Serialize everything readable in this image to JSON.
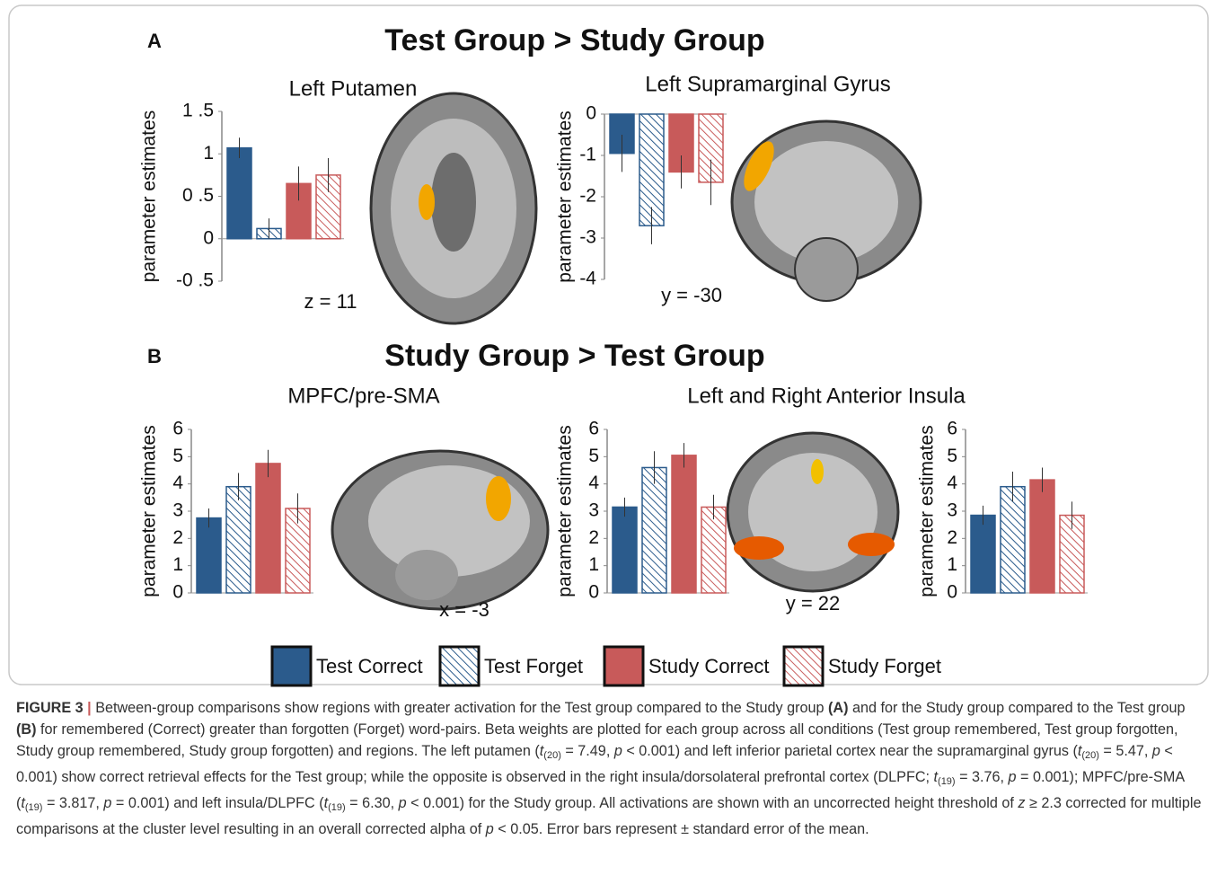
{
  "panel_a": {
    "label": "A",
    "heading": "Test Group > Study Group"
  },
  "panel_b": {
    "label": "B",
    "heading": "Study Group > Test Group"
  },
  "slice_labels": [
    "z = 11",
    "y = -30",
    "x = -3",
    "y = 22"
  ],
  "legend": [
    {
      "name": "Test Correct",
      "color": "#2b5b8c",
      "hatch": false
    },
    {
      "name": "Test Forget",
      "color": "#2b5b8c",
      "hatch": true
    },
    {
      "name": "Study Correct",
      "color": "#c85a5a",
      "hatch": false
    },
    {
      "name": "Study Forget",
      "color": "#c85a5a",
      "hatch": true
    }
  ],
  "chart_data": [
    {
      "type": "bar",
      "title": "Left Putamen",
      "ylabel": "parameter estimates",
      "ylim": [
        -0.5,
        1.5
      ],
      "yticks": [
        {
          "value": 1.5,
          "label": "1 .5"
        },
        1,
        {
          "value": 0.5,
          "label": "0 .5"
        },
        0,
        {
          "value": -0.5,
          "label": "-0 .5"
        }
      ],
      "values": [
        1.07,
        0.12,
        0.65,
        0.75
      ],
      "errors": [
        0.12,
        0.12,
        0.2,
        0.2
      ]
    },
    {
      "type": "bar",
      "title": "Left Supramarginal Gyrus",
      "ylabel": "parameter estimates",
      "ylim": [
        -4,
        0
      ],
      "yticks": [
        0,
        -1,
        -2,
        -3,
        -4
      ],
      "values": [
        -0.95,
        -2.7,
        -1.4,
        -1.65
      ],
      "errors": [
        0.45,
        0.45,
        0.4,
        0.55
      ]
    },
    {
      "type": "bar",
      "title": "MPFC/pre-SMA",
      "ylabel": "parameter estimates",
      "ylim": [
        0,
        6
      ],
      "yticks": [
        6,
        5,
        4,
        3,
        2,
        1,
        0
      ],
      "values": [
        2.75,
        3.9,
        4.75,
        3.1
      ],
      "errors": [
        0.35,
        0.5,
        0.5,
        0.55
      ]
    },
    {
      "type": "bar",
      "title": "Left and Right Anterior Insula",
      "ylabel": "parameter estimates",
      "ylim": [
        0,
        6
      ],
      "yticks": [
        6,
        5,
        4,
        3,
        2,
        1,
        0
      ],
      "values": [
        3.15,
        4.6,
        5.05,
        3.15
      ],
      "errors": [
        0.35,
        0.6,
        0.45,
        0.45
      ]
    },
    {
      "type": "bar",
      "ylabel": "parameter estimates",
      "ylim": [
        0,
        6
      ],
      "yticks": [
        6,
        5,
        4,
        3,
        2,
        1,
        0
      ],
      "values": [
        2.85,
        3.9,
        4.15,
        2.85
      ],
      "errors": [
        0.35,
        0.55,
        0.45,
        0.5
      ]
    }
  ],
  "caption": [
    {
      "text": "FIGURE 3",
      "style": "b"
    },
    {
      "text": " | ",
      "style": "bar"
    },
    {
      "text": "Between-group comparisons show regions with greater activation for the Test group compared to the Study group "
    },
    {
      "text": "(A)",
      "style": "b"
    },
    {
      "text": " and for the Study group compared to the Test group "
    },
    {
      "text": "(B)",
      "style": "b"
    },
    {
      "text": " for remembered (Correct) greater than forgotten (Forget) word-pairs. Beta weights are plotted for each group across all conditions (Test group remembered, Test group forgotten, Study group remembered, Study group forgotten) and regions. The left putamen ("
    },
    {
      "text": "t",
      "style": "i"
    },
    {
      "text": "(20)",
      "style": "sub"
    },
    {
      "text": " = 7.49, "
    },
    {
      "text": "p",
      "style": "i"
    },
    {
      "text": " < 0.001) and left inferior parietal cortex near the supramarginal gyrus ("
    },
    {
      "text": "t",
      "style": "i"
    },
    {
      "text": "(20)",
      "style": "sub"
    },
    {
      "text": " = 5.47, "
    },
    {
      "text": "p",
      "style": "i"
    },
    {
      "text": " < 0.001) show correct retrieval effects for the Test group; while the opposite is observed in the right insula/dorsolateral prefrontal cortex (DLPFC; "
    },
    {
      "text": "t",
      "style": "i"
    },
    {
      "text": "(19)",
      "style": "sub"
    },
    {
      "text": " = 3.76, "
    },
    {
      "text": "p",
      "style": "i"
    },
    {
      "text": " = 0.001); MPFC/pre-SMA ("
    },
    {
      "text": "t",
      "style": "i"
    },
    {
      "text": "(19)",
      "style": "sub"
    },
    {
      "text": " = 3.817, "
    },
    {
      "text": "p",
      "style": "i"
    },
    {
      "text": " = 0.001) and left insula/DLPFC ("
    },
    {
      "text": "t",
      "style": "i"
    },
    {
      "text": "(19)",
      "style": "sub"
    },
    {
      "text": " = 6.30, "
    },
    {
      "text": "p",
      "style": "i"
    },
    {
      "text": " < 0.001) for the Study group. All activations are shown with an uncorrected height threshold of "
    },
    {
      "text": "z",
      "style": "i"
    },
    {
      "text": " ≥ 2.3 corrected for multiple comparisons at the cluster level resulting in an overall corrected alpha of "
    },
    {
      "text": "p",
      "style": "i"
    },
    {
      "text": " < 0.05. Error bars represent ± standard error of the mean."
    }
  ]
}
